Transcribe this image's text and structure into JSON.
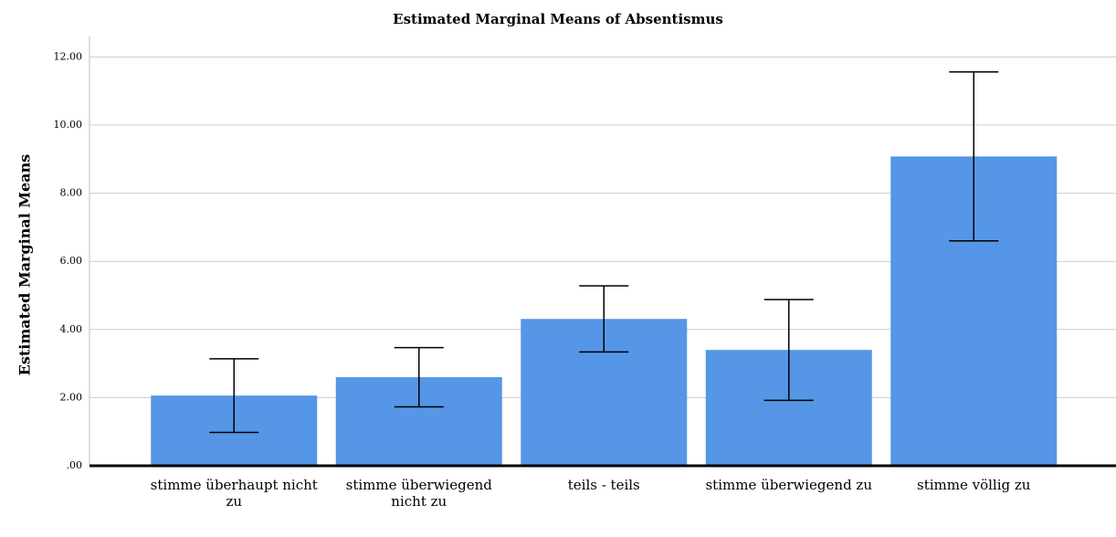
{
  "chart_data": {
    "type": "bar",
    "title": "Estimated Marginal Means of Absentismus",
    "y_label": "Estimated Marginal Means",
    "categories": [
      "stimme überhaupt nicht zu",
      "stimme überwiegend nicht zu",
      "teils - teils",
      "stimme überwiegend zu",
      "stimme völlig zu"
    ],
    "values": [
      2.06,
      2.6,
      4.31,
      3.4,
      9.08
    ],
    "errors": [
      1.08,
      0.87,
      0.97,
      1.48,
      2.48
    ],
    "color": "#5596e6",
    "ylim": [
      0,
      12.6
    ],
    "yticks": [
      {
        "value": 0,
        "label": ".00"
      },
      {
        "value": 2,
        "label": "2.00"
      },
      {
        "value": 4,
        "label": "4.00"
      },
      {
        "value": 6,
        "label": "6.00"
      },
      {
        "value": 8,
        "label": "8.00"
      },
      {
        "value": 10,
        "label": "10.00"
      },
      {
        "value": 12,
        "label": "12.00"
      }
    ],
    "grid": true
  }
}
